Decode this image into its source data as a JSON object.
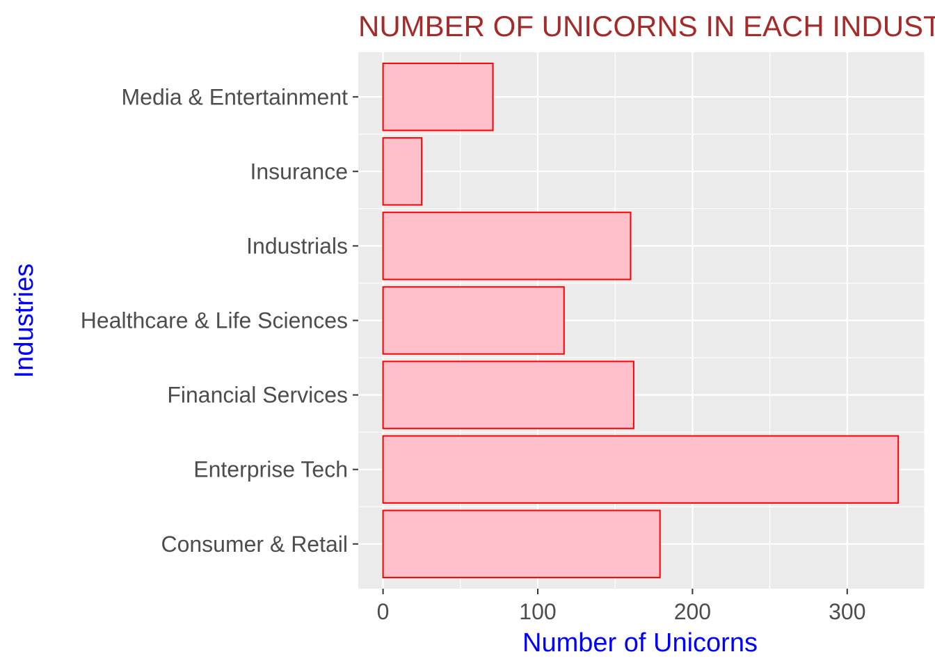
{
  "chart_data": {
    "type": "bar",
    "orientation": "horizontal",
    "title": "NUMBER OF UNICORNS IN EACH INDUSTRY",
    "xlabel": "Number of Unicorns",
    "ylabel": "Industries",
    "categories": [
      "Consumer & Retail",
      "Enterprise Tech",
      "Financial Services",
      "Healthcare & Life Sciences",
      "Industrials",
      "Insurance",
      "Media & Entertainment"
    ],
    "values": [
      179,
      333,
      162,
      117,
      160,
      25,
      71
    ],
    "xlim": [
      -16,
      350
    ],
    "x_ticks": [
      0,
      100,
      200,
      300
    ],
    "grid": true,
    "colors": {
      "bar_fill": "#ffc0cb",
      "bar_stroke": "#ff0000",
      "panel_background": "#ebebeb",
      "grid": "#ffffff",
      "title": "#a52a2a",
      "axis_title": "#0000ff",
      "tick_label": "#4d4d4d"
    }
  }
}
